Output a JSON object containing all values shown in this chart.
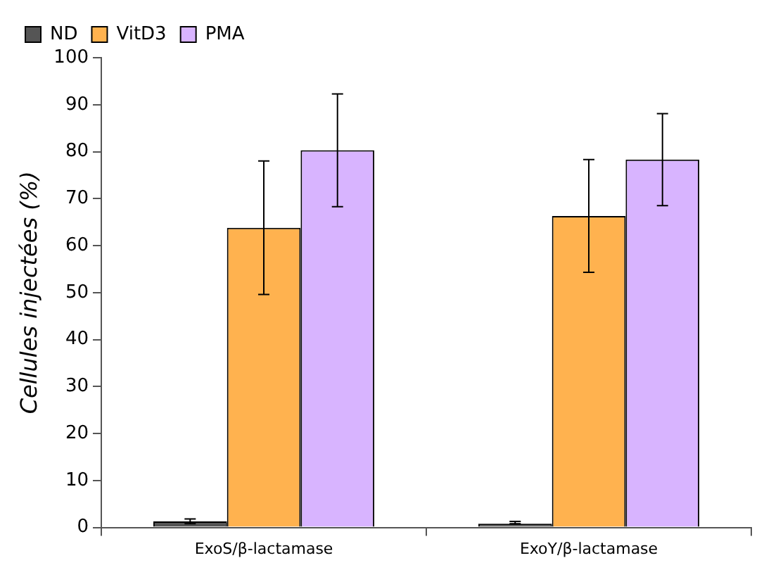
{
  "chart_data": {
    "type": "bar",
    "ylabel": "Cellules injectées (%)",
    "categories": [
      "ExoS/β-lactamase",
      "ExoY/β-lactamase"
    ],
    "series": [
      {
        "name": "ND",
        "color": "#555555",
        "values": [
          1.3,
          0.8
        ],
        "errors": [
          0.5,
          [
            0.8,
            1.3
          ]
        ]
      },
      {
        "name": "VitD3",
        "color": "#ffb24f",
        "values": [
          63.8,
          66.3
        ],
        "errors": [
          14.2,
          12
        ]
      },
      {
        "name": "PMA",
        "color": "#d8b4ff",
        "values": [
          80.3,
          78.3
        ],
        "errors": [
          12,
          9.8
        ]
      }
    ],
    "ylim": [
      0,
      100
    ],
    "yticks": [
      0,
      10,
      20,
      30,
      40,
      50,
      60,
      70,
      80,
      90,
      100
    ],
    "grid": false,
    "legend": "top left"
  }
}
